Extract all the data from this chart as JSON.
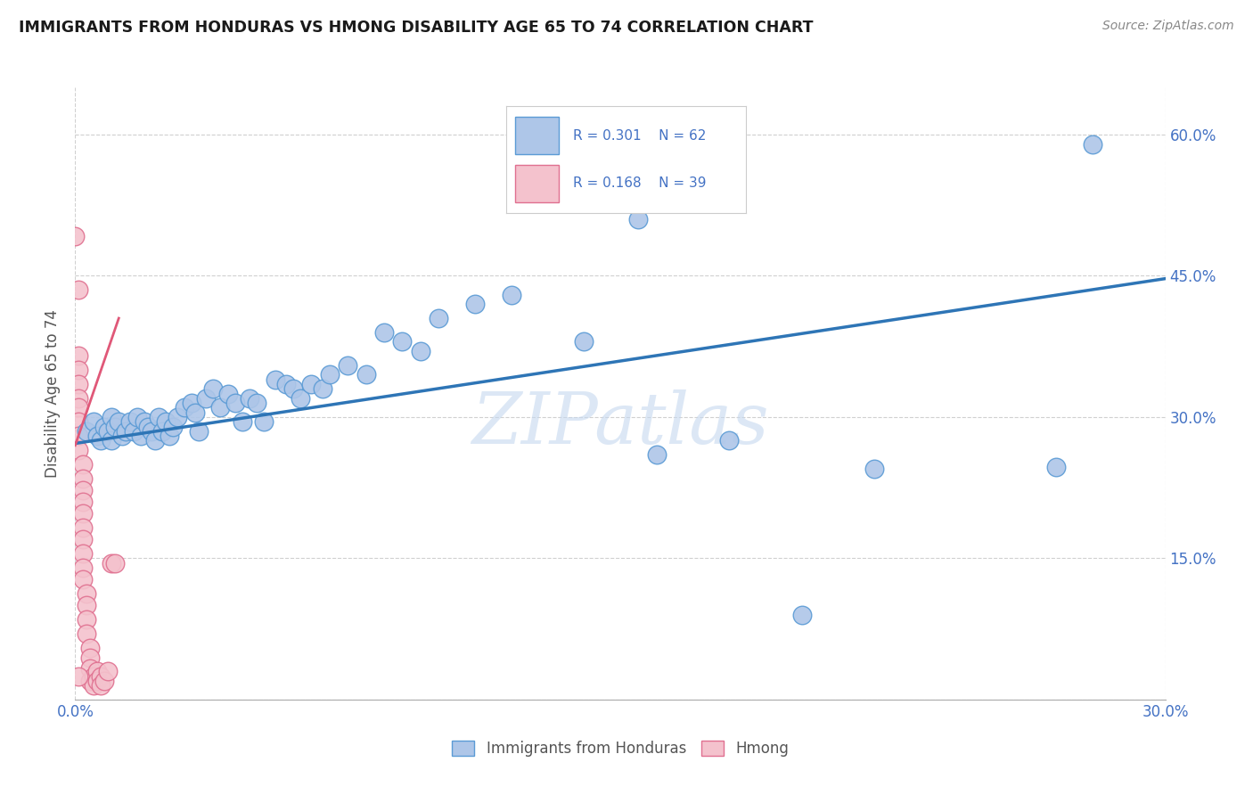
{
  "title": "IMMIGRANTS FROM HONDURAS VS HMONG DISABILITY AGE 65 TO 74 CORRELATION CHART",
  "source": "Source: ZipAtlas.com",
  "ylabel": "Disability Age 65 to 74",
  "xlim": [
    0.0,
    0.3
  ],
  "ylim": [
    0.0,
    0.65
  ],
  "x_ticks": [
    0.0,
    0.3
  ],
  "x_tick_labels": [
    "0.0%",
    "30.0%"
  ],
  "y_ticks": [
    0.0,
    0.15,
    0.3,
    0.45,
    0.6
  ],
  "y_tick_labels_right": [
    "",
    "15.0%",
    "30.0%",
    "45.0%",
    "60.0%"
  ],
  "legend_label_blue": "Immigrants from Honduras",
  "legend_label_pink": "Hmong",
  "blue_color": "#aec6e8",
  "blue_edge_color": "#5b9bd5",
  "pink_color": "#f4c2cd",
  "pink_edge_color": "#e07090",
  "blue_line_color": "#2e75b6",
  "pink_line_color": "#e05878",
  "watermark": "ZIPatlas",
  "background_color": "#ffffff",
  "grid_color": "#d0d0d0",
  "blue_scatter_x": [
    0.003,
    0.005,
    0.006,
    0.007,
    0.008,
    0.009,
    0.01,
    0.01,
    0.011,
    0.012,
    0.013,
    0.014,
    0.015,
    0.016,
    0.017,
    0.018,
    0.019,
    0.02,
    0.021,
    0.022,
    0.023,
    0.024,
    0.025,
    0.026,
    0.027,
    0.028,
    0.03,
    0.032,
    0.033,
    0.034,
    0.036,
    0.038,
    0.04,
    0.042,
    0.044,
    0.046,
    0.048,
    0.05,
    0.052,
    0.055,
    0.058,
    0.06,
    0.062,
    0.065,
    0.068,
    0.07,
    0.075,
    0.08,
    0.085,
    0.09,
    0.095,
    0.1,
    0.11,
    0.12,
    0.14,
    0.16,
    0.18,
    0.2,
    0.22,
    0.27,
    0.155,
    0.28
  ],
  "blue_scatter_y": [
    0.285,
    0.295,
    0.28,
    0.275,
    0.29,
    0.285,
    0.3,
    0.275,
    0.29,
    0.295,
    0.28,
    0.285,
    0.295,
    0.285,
    0.3,
    0.28,
    0.295,
    0.29,
    0.285,
    0.275,
    0.3,
    0.285,
    0.295,
    0.28,
    0.29,
    0.3,
    0.31,
    0.315,
    0.305,
    0.285,
    0.32,
    0.33,
    0.31,
    0.325,
    0.315,
    0.295,
    0.32,
    0.315,
    0.295,
    0.34,
    0.335,
    0.33,
    0.32,
    0.335,
    0.33,
    0.345,
    0.355,
    0.345,
    0.39,
    0.38,
    0.37,
    0.405,
    0.42,
    0.43,
    0.38,
    0.26,
    0.275,
    0.09,
    0.245,
    0.247,
    0.51,
    0.59
  ],
  "pink_scatter_x": [
    0.0,
    0.001,
    0.001,
    0.001,
    0.001,
    0.001,
    0.001,
    0.001,
    0.001,
    0.001,
    0.002,
    0.002,
    0.002,
    0.002,
    0.002,
    0.002,
    0.002,
    0.002,
    0.002,
    0.002,
    0.003,
    0.003,
    0.003,
    0.003,
    0.004,
    0.004,
    0.004,
    0.004,
    0.005,
    0.005,
    0.006,
    0.006,
    0.007,
    0.007,
    0.008,
    0.009,
    0.01,
    0.011,
    0.001
  ],
  "pink_scatter_y": [
    0.492,
    0.435,
    0.365,
    0.35,
    0.335,
    0.32,
    0.31,
    0.295,
    0.28,
    0.265,
    0.25,
    0.235,
    0.222,
    0.21,
    0.198,
    0.183,
    0.17,
    0.155,
    0.14,
    0.128,
    0.113,
    0.1,
    0.085,
    0.07,
    0.055,
    0.044,
    0.033,
    0.02,
    0.025,
    0.015,
    0.03,
    0.02,
    0.025,
    0.015,
    0.02,
    0.03,
    0.145,
    0.145,
    0.025
  ],
  "blue_trend_x": [
    0.0,
    0.3
  ],
  "blue_trend_y": [
    0.272,
    0.447
  ],
  "pink_trend_x": [
    0.0,
    0.012
  ],
  "pink_trend_y": [
    0.27,
    0.405
  ]
}
